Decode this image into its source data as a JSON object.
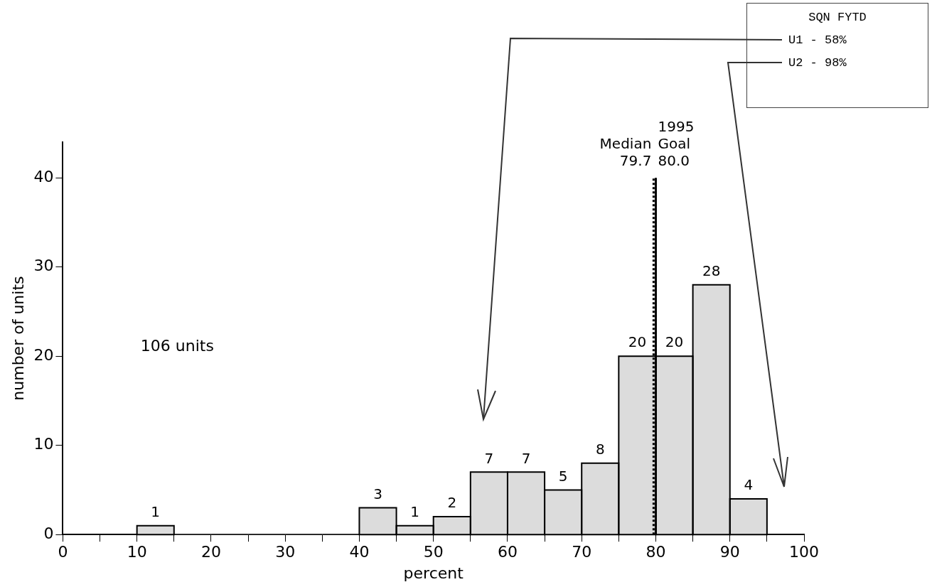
{
  "chart_data": {
    "type": "histogram",
    "xlabel": "percent",
    "ylabel": "number of units",
    "bins": [
      10,
      15,
      20,
      25,
      30,
      35,
      40,
      45,
      50,
      55,
      60,
      65,
      70,
      75,
      80,
      85,
      90,
      95
    ],
    "values": [
      1,
      0,
      0,
      0,
      0,
      0,
      3,
      1,
      2,
      7,
      7,
      5,
      8,
      20,
      20,
      28,
      4
    ],
    "value_labels": [
      "1",
      null,
      null,
      null,
      null,
      null,
      "3",
      "1",
      "2",
      "7",
      "7",
      "5",
      "8",
      "20",
      "20",
      "28",
      "4"
    ],
    "color": "#dcdcdc",
    "xlim": [
      0,
      100
    ],
    "xticks": [
      0,
      {
        "value": 5,
        "label": null
      },
      10,
      {
        "value": 15,
        "label": null
      },
      20,
      {
        "value": 25,
        "label": null
      },
      30,
      {
        "value": 35,
        "label": null
      },
      40,
      {
        "value": 45,
        "label": null
      },
      50,
      {
        "value": 55,
        "label": null
      },
      60,
      {
        "value": 65,
        "label": null
      },
      70,
      {
        "value": 75,
        "label": null
      },
      80,
      {
        "value": 85,
        "label": null
      },
      90,
      {
        "value": 95,
        "label": null
      },
      100
    ],
    "ylim": [
      0,
      44
    ],
    "yticks": [
      0,
      10,
      20,
      30,
      40
    ],
    "grid": false,
    "legend": false,
    "ref_lines": [
      {
        "axis": "x",
        "value": 79.7,
        "label": "Median\n79.7",
        "line_style": "dotted"
      },
      {
        "axis": "x",
        "value": 80.0,
        "label": "1995\nGoal\n80.0",
        "line_style": "solid"
      }
    ],
    "annotations": [
      "106 units",
      "SQN FYTD",
      "U1 - 58%",
      "U2 - 98%"
    ]
  }
}
